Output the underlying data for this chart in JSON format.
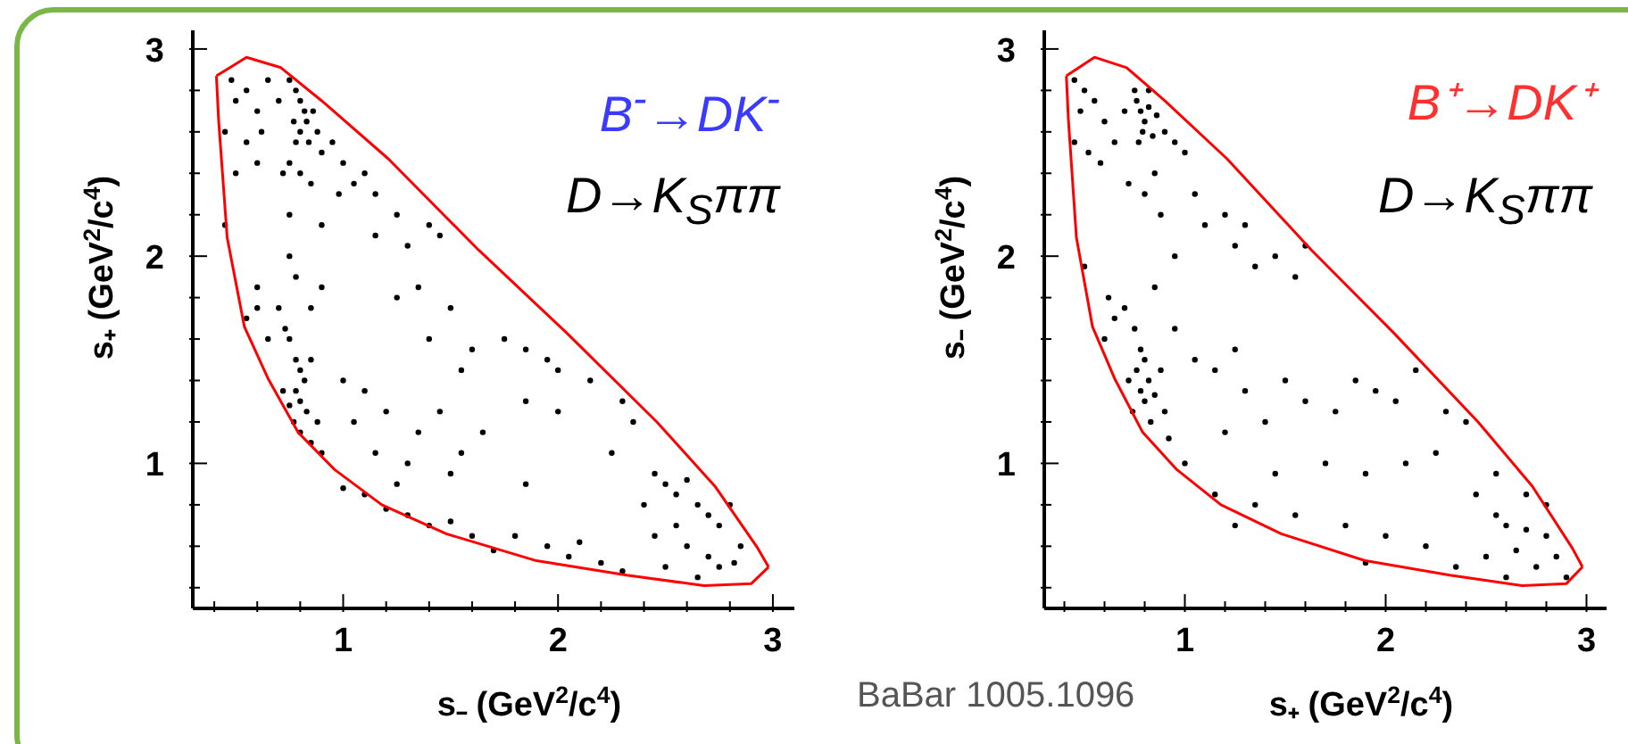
{
  "chart_data": [
    {
      "type": "scatter",
      "xlabel": "s₋ (GeV$^{2}$/c$^{4}$)",
      "ylabel": "s₊ (GeV$^{2}$/c$^{4}$)",
      "annotations": [
        "B$^{-}$→DK$^{-}$",
        "D→K$_{S}$ππ"
      ],
      "xlim": [
        0.3,
        3.1
      ],
      "ylim": [
        0.3,
        3.09
      ],
      "xticks": [
        {
          "value": 0.4,
          "label": null
        },
        {
          "value": 0.6,
          "label": null
        },
        {
          "value": 0.8,
          "label": null
        },
        1,
        {
          "value": 1.2,
          "label": null
        },
        {
          "value": 1.4,
          "label": null
        },
        {
          "value": 1.6,
          "label": null
        },
        {
          "value": 1.8,
          "label": null
        },
        2,
        {
          "value": 2.2,
          "label": null
        },
        {
          "value": 2.4,
          "label": null
        },
        {
          "value": 2.6,
          "label": null
        },
        {
          "value": 2.8,
          "label": null
        },
        3
      ],
      "yticks": [
        {
          "value": 0.4,
          "label": null
        },
        {
          "value": 0.6,
          "label": null
        },
        {
          "value": 0.8,
          "label": null
        },
        1,
        {
          "value": 1.2,
          "label": null
        },
        {
          "value": 1.4,
          "label": null
        },
        {
          "value": 1.6,
          "label": null
        },
        {
          "value": 1.8,
          "label": null
        },
        2,
        {
          "value": 2.2,
          "label": null
        },
        {
          "value": 2.4,
          "label": null
        },
        {
          "value": 2.6,
          "label": null
        },
        {
          "value": 2.8,
          "label": null
        },
        3
      ],
      "grid": false,
      "legend": false,
      "series": [
        {
          "type": "scatter",
          "color": "#000000",
          "marker": "circle",
          "x": [
            0.48,
            0.5,
            0.55,
            0.6,
            0.65,
            0.7,
            0.45,
            0.55,
            0.62,
            0.75,
            0.78,
            0.8,
            0.82,
            0.77,
            0.8,
            0.84,
            0.78,
            0.83,
            0.86,
            0.88,
            0.9,
            0.75,
            0.72,
            0.8,
            0.85,
            0.95,
            1.0,
            1.05,
            1.1,
            0.98,
            1.15,
            0.6,
            0.5,
            0.9,
            0.75,
            1.25,
            1.15,
            1.3,
            1.4,
            1.45,
            0.45,
            0.75,
            0.78,
            0.8,
            0.82,
            0.78,
            0.8,
            0.75,
            0.83,
            0.77,
            0.8,
            0.85,
            0.88,
            0.72,
            0.85,
            0.9,
            0.73,
            0.7,
            0.6,
            0.65,
            0.55,
            0.85,
            0.9,
            0.78,
            0.75,
            0.6,
            1.0,
            1.1,
            1.2,
            1.05,
            1.15,
            1.3,
            1.25,
            1.35,
            1.45,
            1.55,
            1.6,
            1.4,
            1.25,
            1.35,
            1.5,
            1.75,
            1.85,
            1.95,
            2.0,
            1.85,
            2.0,
            2.15,
            2.3,
            2.35,
            2.25,
            1.65,
            1.55,
            1.85,
            1.5,
            1.0,
            1.1,
            1.2,
            1.3,
            1.4,
            1.5,
            1.6,
            1.8,
            1.95,
            2.05,
            2.1,
            2.2,
            2.3,
            1.7,
            2.45,
            2.5,
            2.55,
            2.6,
            2.65,
            2.7,
            2.75,
            2.8,
            2.55,
            2.6,
            2.7,
            2.75,
            2.82,
            2.85,
            2.4,
            2.45,
            2.65,
            2.5
          ],
          "values": [
            2.85,
            2.75,
            2.8,
            2.7,
            2.85,
            2.75,
            2.6,
            2.55,
            2.6,
            2.85,
            2.8,
            2.75,
            2.7,
            2.65,
            2.6,
            2.55,
            2.55,
            2.65,
            2.7,
            2.6,
            2.5,
            2.45,
            2.4,
            2.4,
            2.35,
            2.55,
            2.45,
            2.35,
            2.4,
            2.3,
            2.3,
            2.45,
            2.4,
            2.15,
            2.2,
            2.2,
            2.1,
            2.05,
            2.15,
            2.1,
            2.15,
            1.6,
            1.5,
            1.45,
            1.4,
            1.35,
            1.3,
            1.28,
            1.25,
            1.2,
            1.15,
            1.1,
            1.2,
            1.35,
            1.5,
            1.05,
            1.65,
            1.75,
            1.75,
            1.6,
            1.7,
            1.75,
            1.85,
            1.9,
            2.0,
            1.85,
            1.4,
            1.35,
            1.25,
            1.2,
            1.05,
            1.0,
            0.9,
            1.15,
            1.25,
            1.45,
            1.55,
            1.6,
            1.8,
            1.85,
            1.75,
            1.6,
            1.55,
            1.5,
            1.45,
            1.3,
            1.25,
            1.4,
            1.3,
            1.2,
            1.05,
            1.15,
            1.05,
            0.9,
            0.95,
            0.88,
            0.85,
            0.78,
            0.75,
            0.7,
            0.72,
            0.65,
            0.65,
            0.6,
            0.55,
            0.62,
            0.52,
            0.48,
            0.58,
            0.95,
            0.9,
            0.85,
            0.92,
            0.8,
            0.75,
            0.7,
            0.8,
            0.7,
            0.6,
            0.55,
            0.5,
            0.52,
            0.6,
            0.8,
            0.65,
            0.45,
            0.5
          ]
        },
        {
          "type": "line",
          "color": "#ff0000",
          "marker": "none",
          "line_style": "solid",
          "x": [
            0.41,
            0.42,
            0.46,
            0.54,
            0.65,
            0.79,
            0.96,
            1.18,
            1.48,
            1.9,
            2.32,
            2.68,
            2.9,
            2.98
          ],
          "values": [
            2.87,
            2.66,
            2.09,
            1.66,
            1.41,
            1.15,
            0.97,
            0.8,
            0.66,
            0.53,
            0.46,
            0.41,
            0.42,
            0.5
          ]
        },
        {
          "type": "line",
          "color": "#ff0000",
          "marker": "none",
          "line_style": "solid",
          "x": [
            0.41,
            0.55,
            0.71,
            0.9,
            1.21,
            1.63,
            2.04,
            2.46,
            2.73,
            2.93,
            2.98
          ],
          "values": [
            2.87,
            2.96,
            2.91,
            2.75,
            2.47,
            2.03,
            1.63,
            1.2,
            0.89,
            0.59,
            0.5
          ]
        }
      ]
    },
    {
      "type": "scatter",
      "xlabel": "s₊ (GeV$^{2}$/c$^{4}$)",
      "ylabel": "s₋ (GeV$^{2}$/c$^{4}$)",
      "annotations": [
        "B⁺→DK⁺",
        "D→K$_{S}$ππ",
        "BaBar 1005.1096"
      ],
      "xlim": [
        0.3,
        3.1
      ],
      "ylim": [
        0.3,
        3.09
      ],
      "xticks": [
        {
          "value": 0.4,
          "label": null
        },
        {
          "value": 0.6,
          "label": null
        },
        {
          "value": 0.8,
          "label": null
        },
        1,
        {
          "value": 1.2,
          "label": null
        },
        {
          "value": 1.4,
          "label": null
        },
        {
          "value": 1.6,
          "label": null
        },
        {
          "value": 1.8,
          "label": null
        },
        2,
        {
          "value": 2.2,
          "label": null
        },
        {
          "value": 2.4,
          "label": null
        },
        {
          "value": 2.6,
          "label": null
        },
        {
          "value": 2.8,
          "label": null
        },
        3
      ],
      "yticks": [
        {
          "value": 0.4,
          "label": null
        },
        {
          "value": 0.6,
          "label": null
        },
        {
          "value": 0.8,
          "label": null
        },
        1,
        {
          "value": 1.2,
          "label": null
        },
        {
          "value": 1.4,
          "label": null
        },
        {
          "value": 1.6,
          "label": null
        },
        {
          "value": 1.8,
          "label": null
        },
        2,
        {
          "value": 2.2,
          "label": null
        },
        {
          "value": 2.4,
          "label": null
        },
        {
          "value": 2.6,
          "label": null
        },
        {
          "value": 2.8,
          "label": null
        },
        3
      ],
      "grid": false,
      "legend": false,
      "series": [
        {
          "type": "scatter",
          "color": "#000000",
          "marker": "circle",
          "x": [
            0.45,
            0.5,
            0.48,
            0.55,
            0.6,
            0.45,
            0.52,
            0.58,
            0.65,
            0.7,
            0.76,
            0.78,
            0.8,
            0.82,
            0.79,
            0.84,
            0.77,
            0.86,
            0.9,
            0.95,
            0.75,
            0.82,
            1.0,
            0.72,
            0.8,
            0.85,
            0.88,
            1.05,
            1.1,
            1.2,
            1.25,
            1.3,
            1.35,
            1.45,
            1.55,
            1.6,
            0.95,
            0.5,
            0.7,
            0.75,
            0.78,
            0.8,
            0.76,
            0.82,
            0.78,
            0.8,
            0.74,
            0.83,
            0.85,
            0.88,
            0.72,
            0.9,
            0.65,
            0.6,
            0.62,
            0.85,
            0.95,
            0.92,
            1.0,
            1.05,
            1.15,
            1.25,
            1.3,
            1.2,
            1.4,
            1.5,
            1.6,
            1.75,
            1.85,
            1.95,
            2.05,
            2.15,
            2.3,
            2.4,
            2.25,
            2.1,
            1.9,
            1.7,
            1.45,
            1.35,
            1.15,
            1.25,
            1.55,
            1.8,
            2.0,
            1.9,
            2.2,
            2.35,
            2.5,
            2.45,
            2.55,
            2.6,
            2.7,
            2.8,
            2.85,
            2.75,
            2.65,
            2.9,
            2.6,
            2.55,
            2.7,
            2.8
          ],
          "values": [
            2.85,
            2.8,
            2.7,
            2.75,
            2.65,
            2.55,
            2.5,
            2.45,
            2.55,
            2.7,
            2.75,
            2.7,
            2.65,
            2.72,
            2.6,
            2.58,
            2.55,
            2.68,
            2.6,
            2.55,
            2.8,
            2.8,
            2.5,
            2.35,
            2.3,
            2.4,
            2.2,
            2.3,
            2.15,
            2.2,
            2.05,
            2.15,
            1.95,
            2.0,
            1.9,
            2.05,
            2.0,
            1.95,
            1.75,
            1.65,
            1.55,
            1.5,
            1.45,
            1.4,
            1.35,
            1.3,
            1.25,
            1.2,
            1.33,
            1.45,
            1.4,
            1.25,
            1.7,
            1.6,
            1.8,
            1.85,
            1.65,
            1.12,
            1.0,
            1.5,
            1.45,
            1.55,
            1.35,
            1.15,
            1.2,
            1.4,
            1.3,
            1.25,
            1.4,
            1.35,
            1.3,
            1.45,
            1.25,
            1.2,
            1.05,
            1.0,
            0.95,
            1.0,
            0.95,
            0.8,
            0.85,
            0.7,
            0.75,
            0.7,
            0.65,
            0.52,
            0.6,
            0.5,
            0.55,
            0.85,
            0.75,
            0.7,
            0.68,
            0.65,
            0.55,
            0.5,
            0.58,
            0.45,
            0.45,
            0.95,
            0.85,
            0.8
          ]
        },
        {
          "type": "line",
          "color": "#ff0000",
          "marker": "none",
          "line_style": "solid",
          "x": [
            0.41,
            0.42,
            0.46,
            0.54,
            0.65,
            0.79,
            0.96,
            1.18,
            1.48,
            1.9,
            2.32,
            2.68,
            2.9,
            2.98
          ],
          "values": [
            2.87,
            2.66,
            2.09,
            1.66,
            1.41,
            1.15,
            0.97,
            0.8,
            0.66,
            0.53,
            0.46,
            0.41,
            0.42,
            0.5
          ]
        },
        {
          "type": "line",
          "color": "#ff0000",
          "marker": "none",
          "line_style": "solid",
          "x": [
            0.41,
            0.55,
            0.71,
            0.9,
            1.21,
            1.63,
            2.04,
            2.46,
            2.73,
            2.93,
            2.98
          ],
          "values": [
            2.87,
            2.96,
            2.91,
            2.75,
            2.47,
            2.03,
            1.63,
            1.2,
            0.89,
            0.59,
            0.5
          ]
        }
      ]
    }
  ]
}
